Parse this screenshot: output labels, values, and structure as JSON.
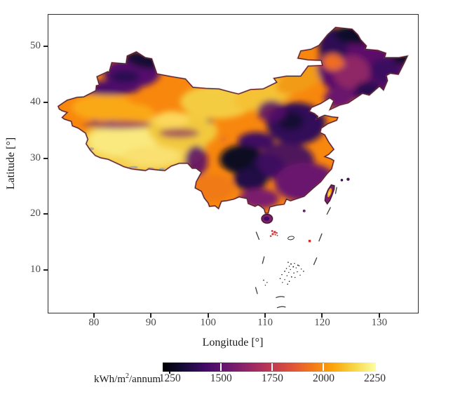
{
  "figure": {
    "background": "#ffffff"
  },
  "axes": {
    "x": {
      "label": "Longitude [°]",
      "ticks": [
        80,
        90,
        100,
        110,
        120,
        130
      ]
    },
    "y": {
      "label": "Latitude [°]",
      "ticks": [
        10,
        20,
        30,
        40,
        50
      ]
    }
  },
  "colorbar": {
    "label_prefix": "kWh/m",
    "label_sup": "2",
    "label_suffix": "/annum",
    "ticks": [
      1250,
      1500,
      1750,
      2000,
      2250
    ],
    "gradient": [
      "#000004",
      "#160b39",
      "#420a68",
      "#6a176e",
      "#932667",
      "#bc3754",
      "#dd513a",
      "#f37819",
      "#fca50a",
      "#f6d746",
      "#fcffa4"
    ]
  },
  "chart_data": {
    "type": "heatmap",
    "title": "",
    "xlabel": "Longitude [°]",
    "ylabel": "Latitude [°]",
    "xlim": [
      71.9,
      136.9
    ],
    "ylim": [
      2.2,
      55.8
    ],
    "x_ticks": [
      80,
      90,
      100,
      110,
      120,
      130
    ],
    "y_ticks": [
      10,
      20,
      30,
      40,
      50
    ],
    "grid": false,
    "colorbar": {
      "label": "kWh/m²/annum",
      "ticks": [
        1250,
        1500,
        1750,
        2000,
        2250
      ],
      "range_est": [
        1215,
        2255
      ],
      "colormap": "inferno",
      "orientation": "horizontal-bottom"
    },
    "map_features": [
      "China national boundary",
      "Bohai Sea inlet",
      "Taiwan",
      "Hainan",
      "Pratas Island",
      "Paracel Islands (red)",
      "Macclesfield atoll outline",
      "Scarborough Shoal (red)",
      "Spratly Islands specks",
      "nine-dash line segments",
      "Himalayan glacier patches (gray)"
    ],
    "regions": [
      {
        "region": "Tibetan Plateau",
        "approx_kwh_per_m2": 2200
      },
      {
        "region": "Qinghai / Qaidam",
        "approx_kwh_per_m2": 2100
      },
      {
        "region": "Tarim Basin (S Xinjiang)",
        "approx_kwh_per_m2": 2000
      },
      {
        "region": "Northern Xinjiang / Altai",
        "approx_kwh_per_m2": 1400
      },
      {
        "region": "Tian Shan",
        "approx_kwh_per_m2": 1500
      },
      {
        "region": "Hexi Corridor / W Inner Mongolia",
        "approx_kwh_per_m2": 2100
      },
      {
        "region": "E Inner Mongolia",
        "approx_kwh_per_m2": 1950
      },
      {
        "region": "Northeast China (Manchuria)",
        "approx_kwh_per_m2": 1500
      },
      {
        "region": "North China Plain",
        "approx_kwh_per_m2": 1450
      },
      {
        "region": "Sichuan Basin",
        "approx_kwh_per_m2": 1250
      },
      {
        "region": "Middle and Lower Yangtze",
        "approx_kwh_per_m2": 1400
      },
      {
        "region": "Southeast coastal China",
        "approx_kwh_per_m2": 1550
      },
      {
        "region": "Yunnan",
        "approx_kwh_per_m2": 1850
      },
      {
        "region": "Hainan",
        "approx_kwh_per_m2": 1600
      },
      {
        "region": "Taiwan central ridge",
        "approx_kwh_per_m2": 2000
      }
    ]
  }
}
